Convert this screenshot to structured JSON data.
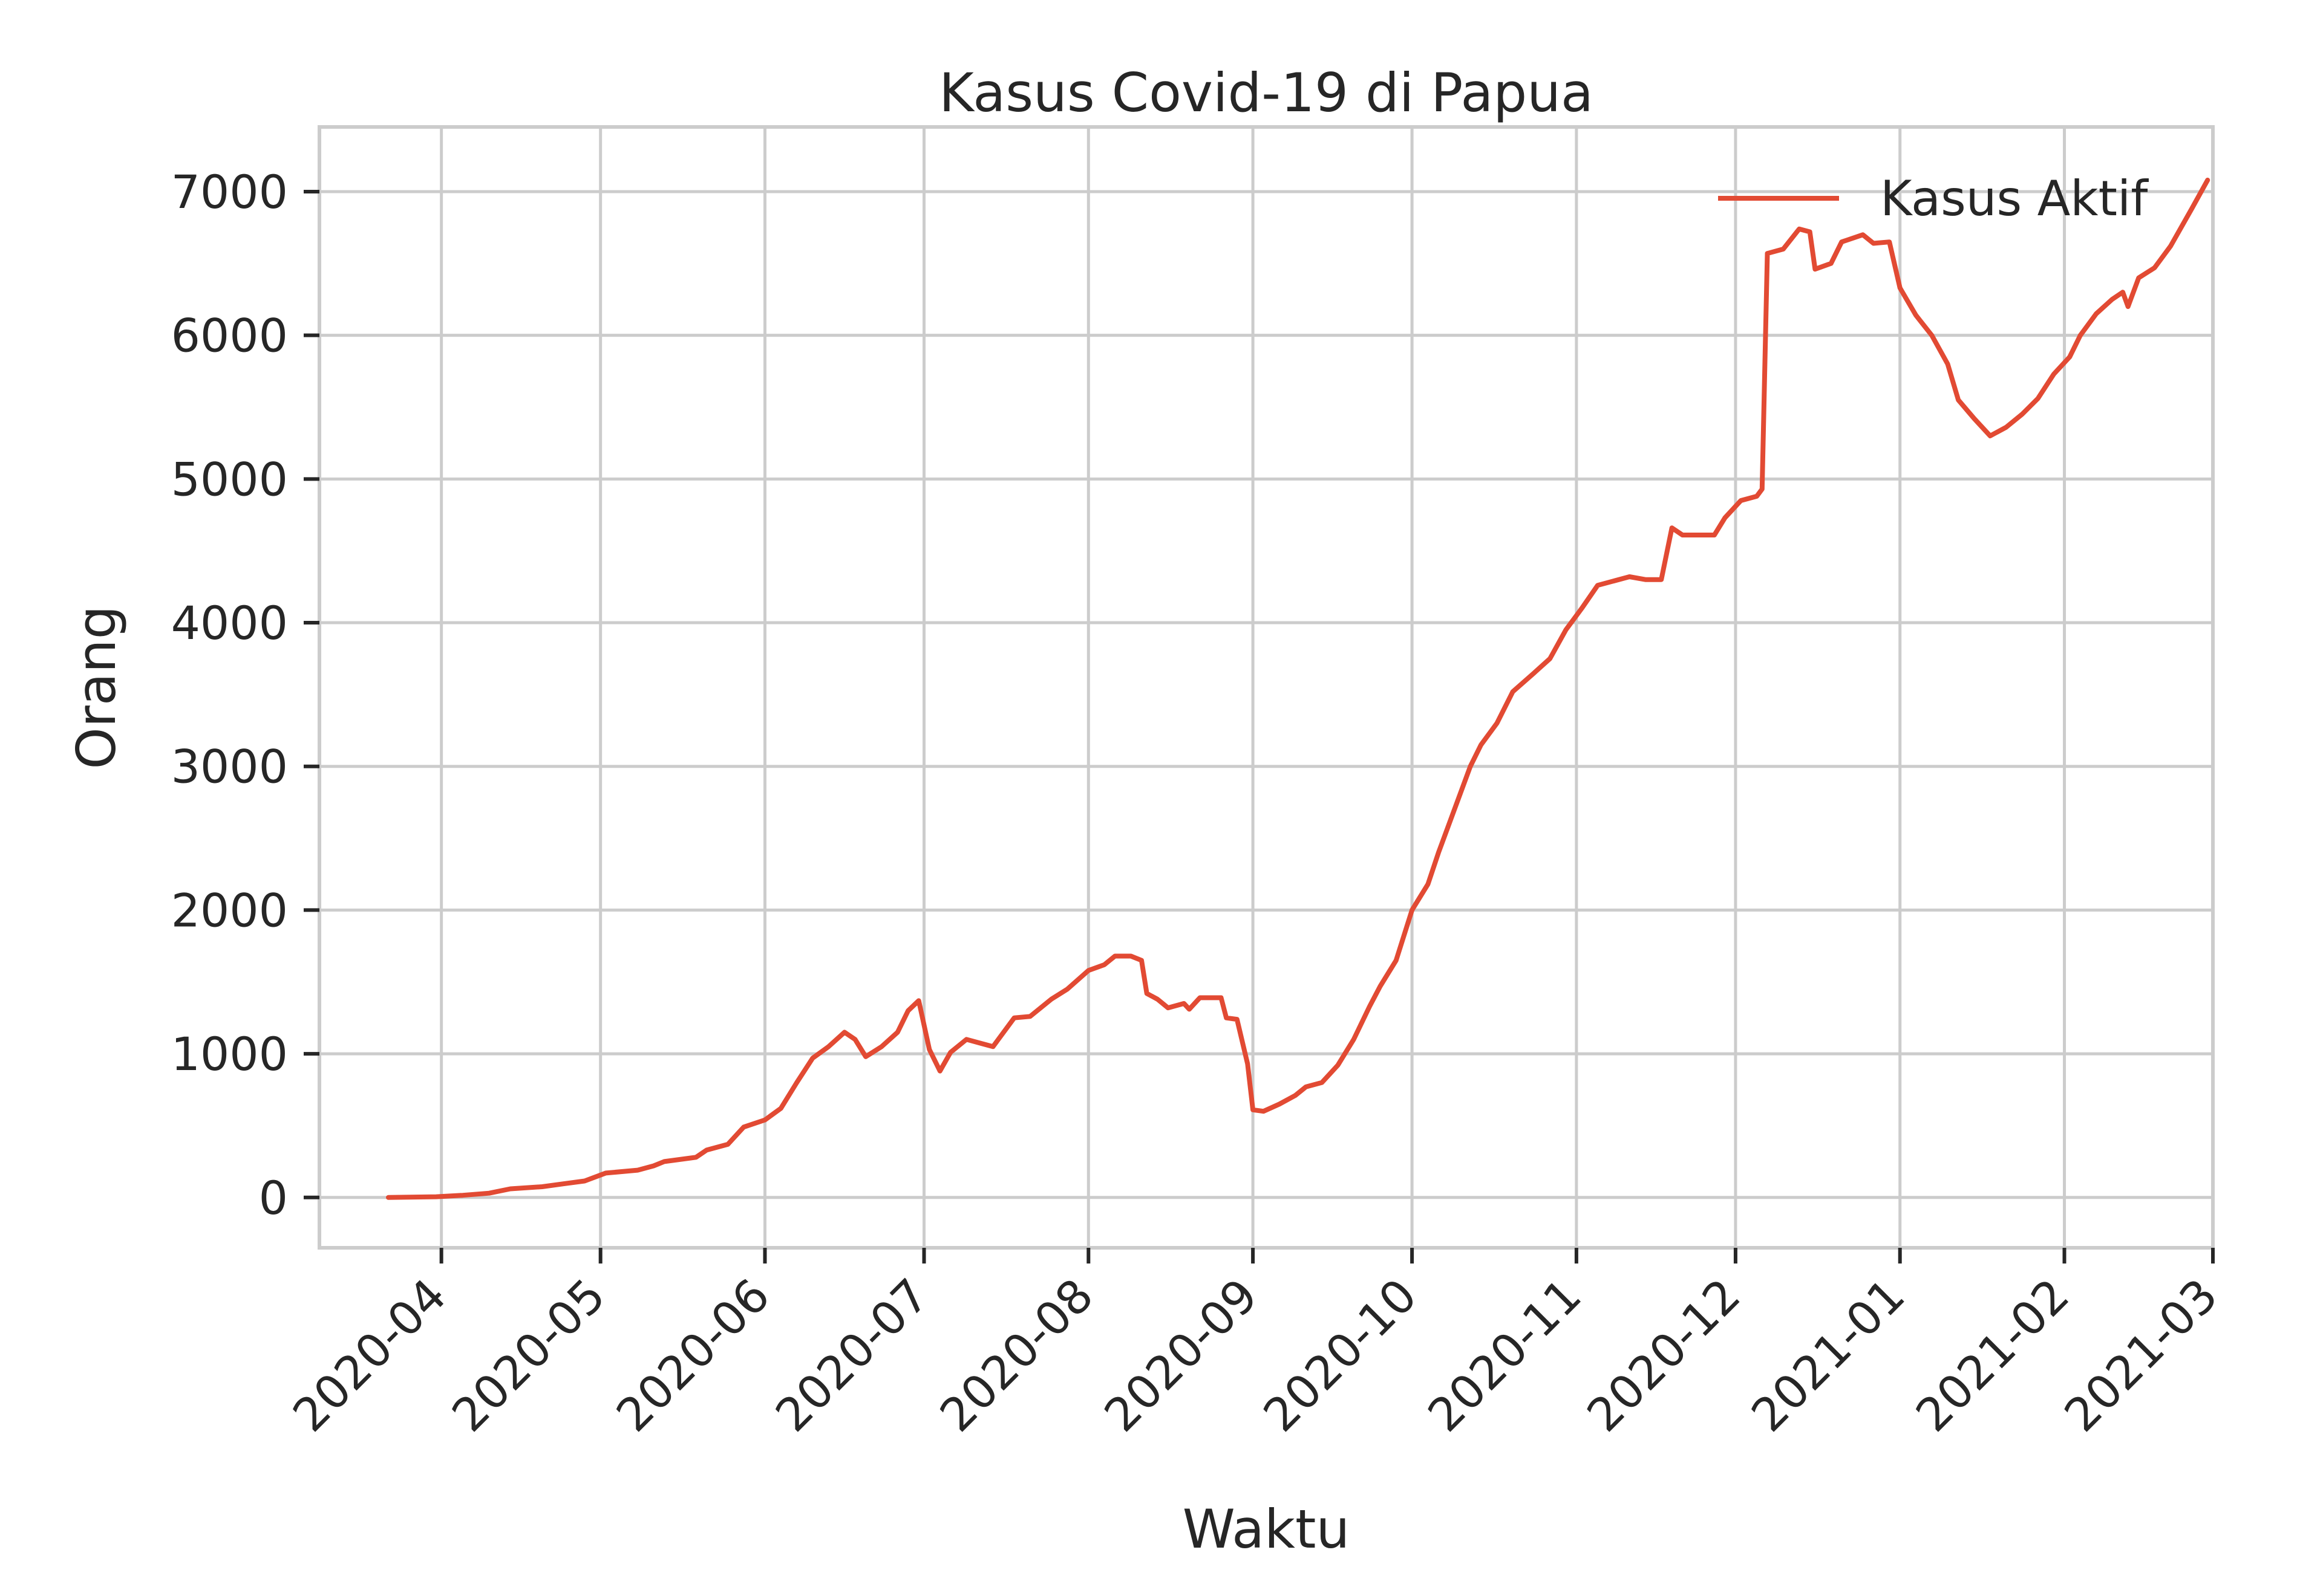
{
  "chart_data": {
    "type": "line",
    "title": "Kasus Covid-19 di Papua",
    "xlabel": "Waktu",
    "ylabel": "Orang",
    "x_ticks": [
      "2020-04",
      "2020-05",
      "2020-06",
      "2020-07",
      "2020-08",
      "2020-09",
      "2020-10",
      "2020-11",
      "2020-12",
      "2021-01",
      "2021-02",
      "2021-03"
    ],
    "y_ticks": [
      0,
      1000,
      2000,
      3000,
      4000,
      5000,
      6000,
      7000
    ],
    "xlim": [
      "2020-03-09",
      "2021-03-01"
    ],
    "ylim": [
      -350,
      7450
    ],
    "grid": true,
    "legend": "top-right",
    "colors": {
      "line": "#e24a33",
      "grid": "#cccccc",
      "frame": "#cccccc",
      "text": "#262626"
    },
    "series": [
      {
        "name": "Kasus Aktif",
        "points": [
          [
            "2020-03-22",
            0
          ],
          [
            "2020-03-31",
            5
          ],
          [
            "2020-04-05",
            15
          ],
          [
            "2020-04-10",
            30
          ],
          [
            "2020-04-14",
            60
          ],
          [
            "2020-04-20",
            75
          ],
          [
            "2020-04-24",
            95
          ],
          [
            "2020-04-28",
            115
          ],
          [
            "2020-05-02",
            170
          ],
          [
            "2020-05-08",
            190
          ],
          [
            "2020-05-11",
            220
          ],
          [
            "2020-05-13",
            250
          ],
          [
            "2020-05-19",
            280
          ],
          [
            "2020-05-21",
            330
          ],
          [
            "2020-05-25",
            370
          ],
          [
            "2020-05-28",
            490
          ],
          [
            "2020-06-01",
            540
          ],
          [
            "2020-06-04",
            620
          ],
          [
            "2020-06-07",
            800
          ],
          [
            "2020-06-10",
            970
          ],
          [
            "2020-06-13",
            1050
          ],
          [
            "2020-06-16",
            1150
          ],
          [
            "2020-06-18",
            1100
          ],
          [
            "2020-06-20",
            980
          ],
          [
            "2020-06-23",
            1050
          ],
          [
            "2020-06-26",
            1150
          ],
          [
            "2020-06-28",
            1300
          ],
          [
            "2020-06-30",
            1370
          ],
          [
            "2020-07-02",
            1030
          ],
          [
            "2020-07-04",
            880
          ],
          [
            "2020-07-06",
            1010
          ],
          [
            "2020-07-09",
            1100
          ],
          [
            "2020-07-12",
            1070
          ],
          [
            "2020-07-14",
            1050
          ],
          [
            "2020-07-18",
            1250
          ],
          [
            "2020-07-21",
            1260
          ],
          [
            "2020-07-25",
            1380
          ],
          [
            "2020-07-28",
            1450
          ],
          [
            "2020-08-01",
            1580
          ],
          [
            "2020-08-04",
            1620
          ],
          [
            "2020-08-06",
            1680
          ],
          [
            "2020-08-09",
            1680
          ],
          [
            "2020-08-11",
            1650
          ],
          [
            "2020-08-12",
            1420
          ],
          [
            "2020-08-14",
            1380
          ],
          [
            "2020-08-16",
            1320
          ],
          [
            "2020-08-19",
            1350
          ],
          [
            "2020-08-20",
            1310
          ],
          [
            "2020-08-22",
            1390
          ],
          [
            "2020-08-26",
            1390
          ],
          [
            "2020-08-27",
            1250
          ],
          [
            "2020-08-29",
            1240
          ],
          [
            "2020-08-31",
            930
          ],
          [
            "2020-09-01",
            610
          ],
          [
            "2020-09-03",
            600
          ],
          [
            "2020-09-06",
            650
          ],
          [
            "2020-09-09",
            710
          ],
          [
            "2020-09-11",
            770
          ],
          [
            "2020-09-14",
            800
          ],
          [
            "2020-09-17",
            920
          ],
          [
            "2020-09-20",
            1100
          ],
          [
            "2020-09-23",
            1330
          ],
          [
            "2020-09-25",
            1470
          ],
          [
            "2020-09-28",
            1650
          ],
          [
            "2020-10-01",
            2000
          ],
          [
            "2020-10-04",
            2180
          ],
          [
            "2020-10-06",
            2400
          ],
          [
            "2020-10-09",
            2700
          ],
          [
            "2020-10-12",
            3000
          ],
          [
            "2020-10-14",
            3150
          ],
          [
            "2020-10-17",
            3300
          ],
          [
            "2020-10-20",
            3520
          ],
          [
            "2020-10-24",
            3650
          ],
          [
            "2020-10-27",
            3750
          ],
          [
            "2020-10-30",
            3950
          ],
          [
            "2020-11-02",
            4100
          ],
          [
            "2020-11-05",
            4260
          ],
          [
            "2020-11-08",
            4290
          ],
          [
            "2020-11-11",
            4320
          ],
          [
            "2020-11-14",
            4300
          ],
          [
            "2020-11-17",
            4300
          ],
          [
            "2020-11-19",
            4660
          ],
          [
            "2020-11-21",
            4610
          ],
          [
            "2020-11-27",
            4610
          ],
          [
            "2020-11-29",
            4730
          ],
          [
            "2020-12-02",
            4850
          ],
          [
            "2020-12-05",
            4880
          ],
          [
            "2020-12-06",
            4930
          ],
          [
            "2020-12-07",
            6570
          ],
          [
            "2020-12-10",
            6600
          ],
          [
            "2020-12-13",
            6740
          ],
          [
            "2020-12-15",
            6720
          ],
          [
            "2020-12-16",
            6460
          ],
          [
            "2020-12-19",
            6500
          ],
          [
            "2020-12-21",
            6650
          ],
          [
            "2020-12-25",
            6700
          ],
          [
            "2020-12-27",
            6640
          ],
          [
            "2020-12-30",
            6650
          ],
          [
            "2021-01-01",
            6330
          ],
          [
            "2021-01-04",
            6140
          ],
          [
            "2021-01-07",
            6000
          ],
          [
            "2021-01-10",
            5800
          ],
          [
            "2021-01-12",
            5550
          ],
          [
            "2021-01-15",
            5420
          ],
          [
            "2021-01-18",
            5300
          ],
          [
            "2021-01-21",
            5360
          ],
          [
            "2021-01-24",
            5450
          ],
          [
            "2021-01-27",
            5560
          ],
          [
            "2021-01-30",
            5730
          ],
          [
            "2021-02-02",
            5850
          ],
          [
            "2021-02-04",
            6000
          ],
          [
            "2021-02-07",
            6150
          ],
          [
            "2021-02-10",
            6250
          ],
          [
            "2021-02-12",
            6300
          ],
          [
            "2021-02-13",
            6200
          ],
          [
            "2021-02-15",
            6400
          ],
          [
            "2021-02-18",
            6470
          ],
          [
            "2021-02-21",
            6620
          ],
          [
            "2021-02-25",
            6880
          ],
          [
            "2021-02-28",
            7080
          ]
        ]
      }
    ]
  }
}
